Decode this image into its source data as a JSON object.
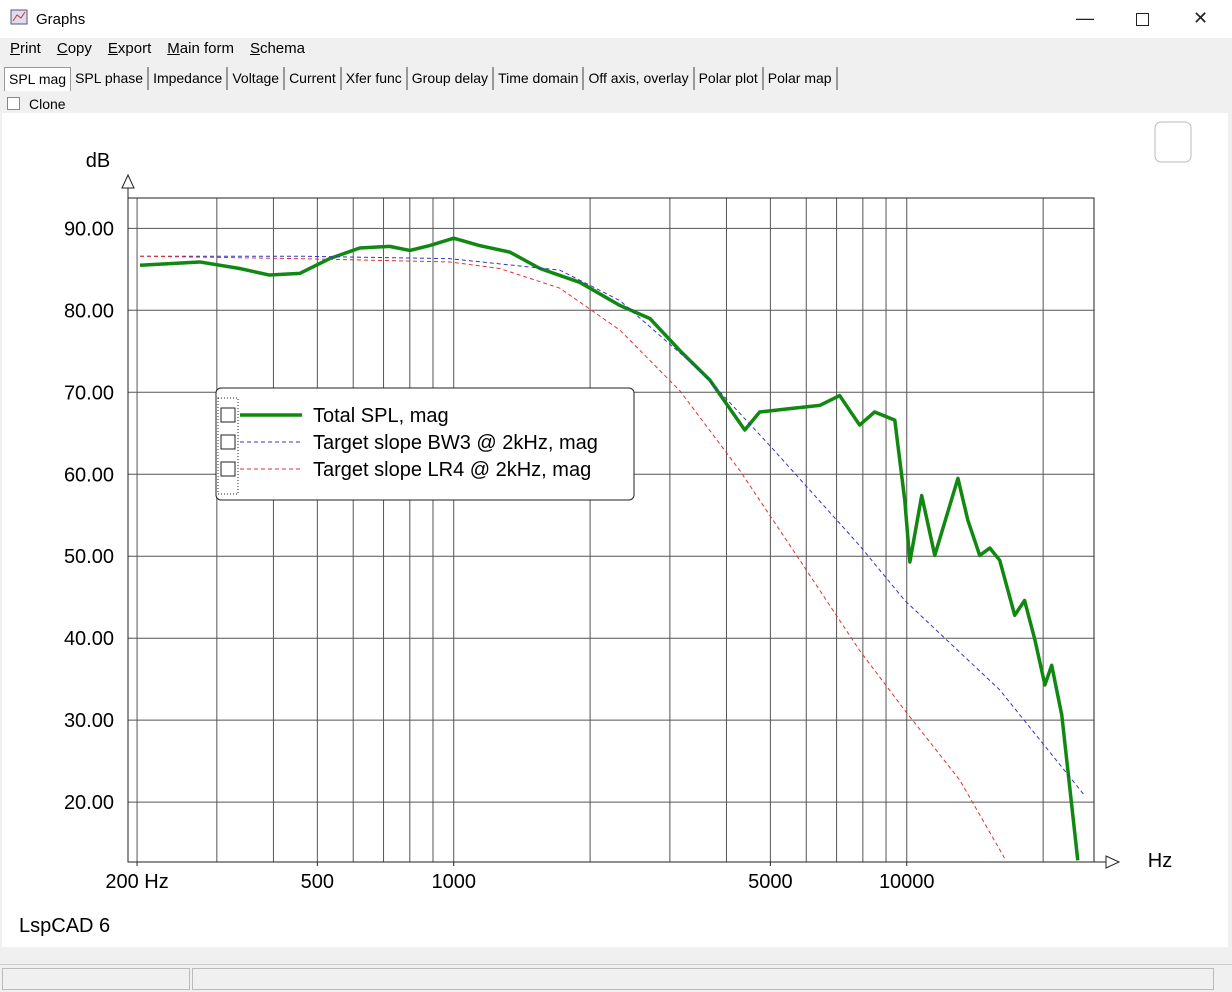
{
  "window": {
    "title": "Graphs"
  },
  "menu": [
    "Print",
    "Copy",
    "Export",
    "Main form",
    "Schema"
  ],
  "tabs": [
    "SPL mag",
    "SPL phase",
    "Impedance",
    "Voltage",
    "Current",
    "Xfer func",
    "Group delay",
    "Time domain",
    "Off axis, overlay",
    "Polar plot",
    "Polar map"
  ],
  "clone": "Clone",
  "footer": "LspCAD 6",
  "chart_data": {
    "type": "line",
    "y_label": "dB",
    "x_label": "Hz",
    "log_x": true,
    "grid": true,
    "xlim": [
      191,
      25900
    ],
    "ylim": [
      12.7,
      93.7
    ],
    "xticks": [
      {
        "value": 200,
        "label": "200 Hz"
      },
      500,
      1000,
      5000,
      10000
    ],
    "yticks": [
      {
        "value": 20,
        "label": "20.00"
      },
      {
        "value": 30,
        "label": "30.00"
      },
      {
        "value": 40,
        "label": "40.00"
      },
      {
        "value": 50,
        "label": "50.00"
      },
      {
        "value": 60,
        "label": "60.00"
      },
      {
        "value": 70,
        "label": "70.00"
      },
      {
        "value": 80,
        "label": "80.00"
      },
      {
        "value": 90,
        "label": "90.00"
      }
    ],
    "series": [
      {
        "name": "Total SPL, mag",
        "color": "#118811",
        "dashed": false,
        "x": [
          203,
          275,
          337,
          392,
          457,
          532,
          620,
          722,
          800,
          885,
          1000,
          1140,
          1330,
          1550,
          1900,
          2325,
          2710,
          3155,
          3675,
          4390,
          4735,
          5520,
          6425,
          7110,
          7870,
          8495,
          9410,
          9900,
          10160,
          10790,
          11530,
          12970,
          13640,
          14490,
          15250,
          16040,
          17310,
          18200,
          19180,
          20180,
          20890,
          21990,
          23850
        ],
        "values": [
          85.5,
          85.9,
          85.1,
          84.3,
          84.5,
          86.3,
          87.6,
          87.8,
          87.3,
          87.9,
          88.8,
          87.9,
          87.1,
          85.1,
          83.4,
          80.6,
          79.0,
          75.1,
          71.5,
          65.4,
          67.6,
          68.0,
          68.4,
          69.6,
          66.0,
          67.6,
          66.6,
          56.8,
          49.3,
          57.4,
          50.1,
          59.5,
          54.4,
          50.1,
          51.0,
          49.5,
          42.8,
          44.6,
          39.8,
          34.3,
          36.7,
          30.6,
          12.9
        ]
      },
      {
        "name": "Target slope BW3 @ 2kHz, mag",
        "color": "#3333cc",
        "dashed": true,
        "x": [
          203,
          457,
          980,
          1715,
          2325,
          3490,
          4985,
          7870,
          9900,
          16040,
          24620
        ],
        "values": [
          86.6,
          86.6,
          86.3,
          84.9,
          81.2,
          72.7,
          63.5,
          51.3,
          44.6,
          33.7,
          20.9
        ]
      },
      {
        "name": "Target slope LR4 @ 2kHz, mag",
        "color": "#dd3333",
        "dashed": true,
        "x": [
          203,
          457,
          980,
          1263,
          1715,
          2325,
          3155,
          4275,
          5810,
          7870,
          9900,
          13090,
          16430
        ],
        "values": [
          86.6,
          86.3,
          85.9,
          85.1,
          82.7,
          77.6,
          70.2,
          60.5,
          49.5,
          38.5,
          31.2,
          22.7,
          13.2
        ]
      }
    ]
  }
}
